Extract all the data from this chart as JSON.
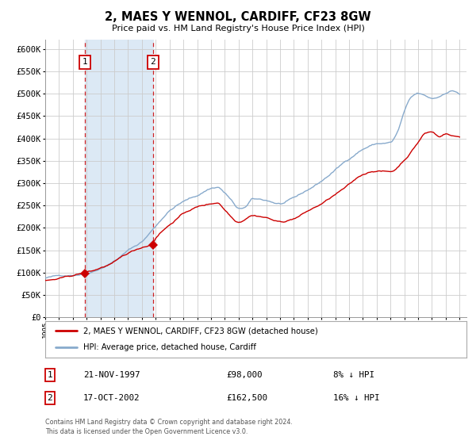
{
  "title": "2, MAES Y WENNOL, CARDIFF, CF23 8GW",
  "subtitle": "Price paid vs. HM Land Registry's House Price Index (HPI)",
  "ylim": [
    0,
    620000
  ],
  "yticks": [
    0,
    50000,
    100000,
    150000,
    200000,
    250000,
    300000,
    350000,
    400000,
    450000,
    500000,
    550000,
    600000
  ],
  "ytick_labels": [
    "£0",
    "£50K",
    "£100K",
    "£150K",
    "£200K",
    "£250K",
    "£300K",
    "£350K",
    "£400K",
    "£450K",
    "£500K",
    "£550K",
    "£600K"
  ],
  "xlim_start": 1995,
  "xlim_end": 2025.5,
  "sale1_date_num": 1997.89,
  "sale1_price": 98000,
  "sale2_date_num": 2002.79,
  "sale2_price": 162500,
  "sale1_date_str": "21-NOV-1997",
  "sale1_price_str": "£98,000",
  "sale1_pct": "8% ↓ HPI",
  "sale2_date_str": "17-OCT-2002",
  "sale2_price_str": "£162,500",
  "sale2_pct": "16% ↓ HPI",
  "red_line_color": "#cc0000",
  "blue_line_color": "#88aacc",
  "shaded_region_color": "#dce9f5",
  "grid_color": "#cccccc",
  "background_color": "#ffffff",
  "sale_box_color": "#cc0000",
  "legend_label_red": "2, MAES Y WENNOL, CARDIFF, CF23 8GW (detached house)",
  "legend_label_blue": "HPI: Average price, detached house, Cardiff",
  "footer1": "Contains HM Land Registry data © Crown copyright and database right 2024.",
  "footer2": "This data is licensed under the Open Government Licence v3.0.",
  "hpi_waypoints_x": [
    1995.0,
    1996.0,
    1997.0,
    1998.0,
    1999.0,
    2000.0,
    2001.0,
    2002.0,
    2003.0,
    2004.0,
    2005.0,
    2006.0,
    2007.0,
    2007.5,
    2008.0,
    2008.5,
    2009.0,
    2009.5,
    2010.0,
    2011.0,
    2012.0,
    2013.0,
    2014.0,
    2015.0,
    2016.0,
    2017.0,
    2018.0,
    2019.0,
    2020.0,
    2020.5,
    2021.0,
    2021.5,
    2022.0,
    2022.5,
    2023.0,
    2023.5,
    2024.0,
    2024.5,
    2025.0
  ],
  "hpi_waypoints_y": [
    88000,
    92000,
    96000,
    102000,
    115000,
    132000,
    155000,
    175000,
    210000,
    245000,
    265000,
    278000,
    295000,
    298000,
    285000,
    268000,
    248000,
    252000,
    268000,
    265000,
    258000,
    268000,
    285000,
    305000,
    330000,
    355000,
    378000,
    390000,
    393000,
    415000,
    460000,
    490000,
    498000,
    492000,
    486000,
    490000,
    500000,
    505000,
    498000
  ],
  "prop_waypoints_x": [
    1995.0,
    1996.0,
    1997.0,
    1997.89,
    1998.5,
    1999.0,
    2000.0,
    2001.0,
    2002.0,
    2002.79,
    2003.0,
    2004.0,
    2005.0,
    2006.0,
    2007.0,
    2007.5,
    2008.0,
    2009.0,
    2010.0,
    2011.0,
    2012.0,
    2013.0,
    2014.0,
    2015.0,
    2016.0,
    2017.0,
    2018.0,
    2019.0,
    2020.0,
    2021.0,
    2022.0,
    2022.5,
    2023.0,
    2023.5,
    2024.0,
    2024.5,
    2025.0
  ],
  "prop_waypoints_y": [
    82000,
    85000,
    91000,
    98000,
    102000,
    108000,
    120000,
    138000,
    152000,
    162500,
    175000,
    205000,
    230000,
    245000,
    252000,
    255000,
    240000,
    215000,
    232000,
    228000,
    218000,
    226000,
    242000,
    258000,
    278000,
    298000,
    320000,
    330000,
    328000,
    355000,
    395000,
    415000,
    418000,
    408000,
    415000,
    410000,
    408000
  ],
  "noise_seed": 42
}
